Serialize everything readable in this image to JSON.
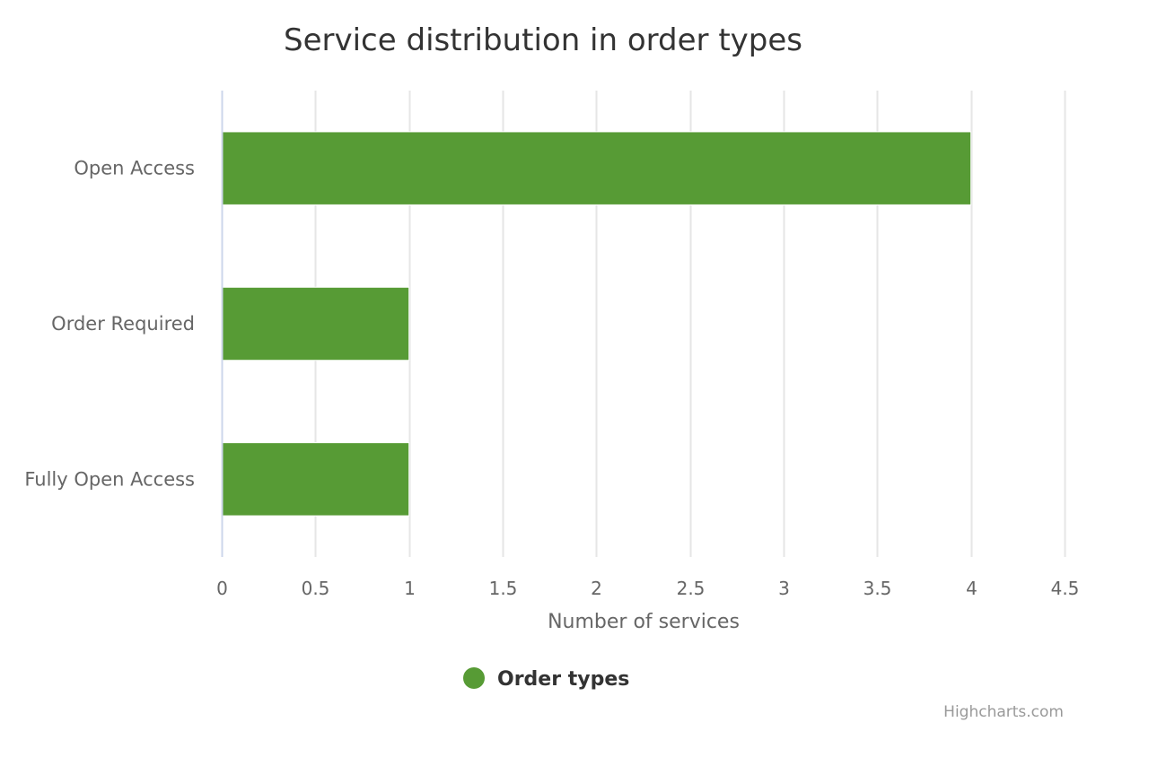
{
  "chart_data": {
    "type": "bar",
    "orientation": "horizontal",
    "title": "Service distribution in order types",
    "categories": [
      "Open Access",
      "Order Required",
      "Fully Open Access"
    ],
    "series": [
      {
        "name": "Order types",
        "values": [
          4,
          1,
          1
        ],
        "color": "#579b35"
      }
    ],
    "xlabel": "Number of services",
    "ylabel": "",
    "xlim": [
      0,
      4.5
    ],
    "x_ticks": [
      "0",
      "0.5",
      "1",
      "1.5",
      "2",
      "2.5",
      "3",
      "3.5",
      "4",
      "4.5"
    ],
    "grid": true,
    "legend_position": "bottom-center",
    "credits": "Highcharts.com",
    "colors": {
      "bar": "#579b35",
      "gridline": "#e6e6e6",
      "axis_line": "#ccd6eb",
      "title": "#333333",
      "labels": "#666666",
      "credits": "#999999"
    }
  }
}
